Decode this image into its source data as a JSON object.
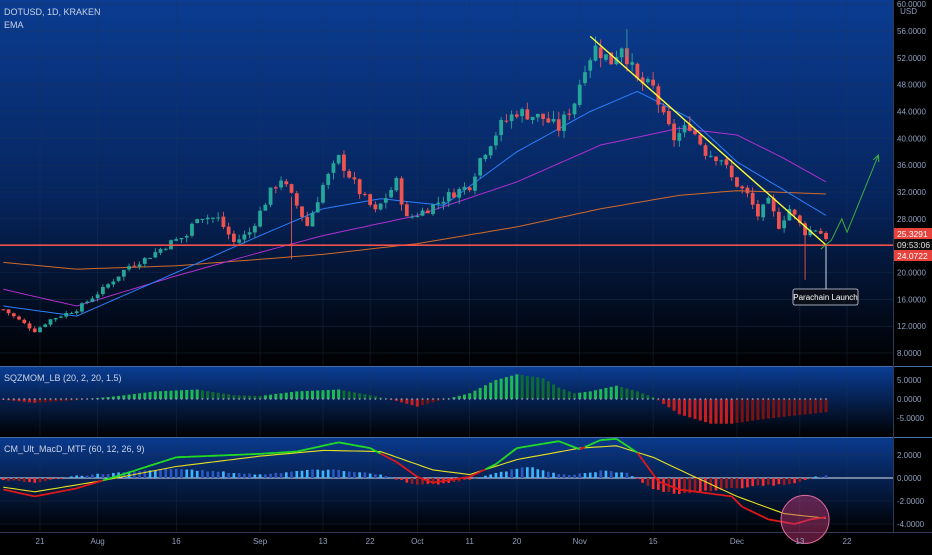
{
  "header": {
    "symbol": "DOTUSD, 1D, KRAKEN",
    "indicator": "EMA"
  },
  "currency": {
    "label": "USD"
  },
  "colors": {
    "up": "#26a69a",
    "down": "#ef5350",
    "bg_top": "#0a3a8c",
    "bg_bottom": "#000000",
    "support": "#f0524a",
    "trendline": "#ffff33",
    "ema_fast": "#2a7fff",
    "ema_mid": "#b030d0",
    "ema_slow": "#d06a2a",
    "projection": "#3fae3f",
    "grid": "#1f3552",
    "sqz_up": "#1db954",
    "sqz_down": "#c81e1e",
    "macd_line": "#22dd22",
    "signal_line": "#e8e020",
    "circle": "#c63a7a"
  },
  "price_axis": {
    "ticks": [
      "60.0000",
      "56.0000",
      "52.0000",
      "48.0000",
      "44.0000",
      "40.0000",
      "36.0000",
      "32.0000",
      "28.0000",
      "24.0000",
      "20.0000",
      "16.0000",
      "12.0000",
      "8.0000"
    ],
    "tick_values": [
      60,
      56,
      52,
      48,
      44,
      40,
      36,
      32,
      28,
      24,
      20,
      16,
      12,
      8
    ]
  },
  "price_labels": {
    "current": "25.3291",
    "countdown": "09:53:06",
    "support": "24.0722"
  },
  "annotation": {
    "text": "Parachain Launch"
  },
  "sqz_panel": {
    "title": "SQZMOM_LB (20, 2, 20, 1.5)",
    "ticks": [
      "5.0000",
      "0.0000",
      "-5.0000"
    ],
    "tick_values": [
      5,
      0,
      -5
    ]
  },
  "macd_panel": {
    "title": "CM_Ult_MacD_MTF (60, 12, 26, 9)",
    "ticks": [
      "2.0000",
      "0.0000",
      "-2.0000",
      "-4.0000"
    ],
    "tick_values": [
      2,
      0,
      -2,
      -4
    ]
  },
  "time_axis": {
    "labels": [
      "21",
      "Aug",
      "16",
      "Sep",
      "13",
      "22",
      "Oct",
      "11",
      "20",
      "Nov",
      "15",
      "Dec",
      "13",
      "22"
    ],
    "dates": [
      "2021-07-21",
      "2021-08-01",
      "2021-08-16",
      "2021-09-01",
      "2021-09-13",
      "2021-09-22",
      "2021-10-01",
      "2021-10-11",
      "2021-10-20",
      "2021-11-01",
      "2021-11-15",
      "2021-12-01",
      "2021-12-13",
      "2021-12-22"
    ]
  },
  "chart_data": {
    "type": "candlestick",
    "symbol": "DOTUSD",
    "interval": "1D",
    "exchange": "KRAKEN",
    "ylim": [
      7,
      61
    ],
    "support_level": 24.0722,
    "last_price": 25.3291,
    "trendline": {
      "from": {
        "date": "2021-11-03",
        "price": 55.2
      },
      "to": {
        "date": "2021-12-18",
        "price": 24.1
      }
    },
    "price_keypoints": [
      [
        "2021-07-14",
        14.5
      ],
      [
        "2021-07-20",
        11.3
      ],
      [
        "2021-07-23",
        13.0
      ],
      [
        "2021-07-28",
        14.5
      ],
      [
        "2021-08-02",
        17.5
      ],
      [
        "2021-08-07",
        21.0
      ],
      [
        "2021-08-10",
        22.0
      ],
      [
        "2021-08-15",
        24.5
      ],
      [
        "2021-08-18",
        25.5
      ],
      [
        "2021-08-20",
        28.5
      ],
      [
        "2021-08-24",
        28.0
      ],
      [
        "2021-08-27",
        24.5
      ],
      [
        "2021-08-30",
        26.0
      ],
      [
        "2021-09-03",
        32.0
      ],
      [
        "2021-09-05",
        34.0
      ],
      [
        "2021-09-08",
        30.0
      ],
      [
        "2021-09-10",
        27.0
      ],
      [
        "2021-09-13",
        33.0
      ],
      [
        "2021-09-16",
        37.0
      ],
      [
        "2021-09-20",
        32.0
      ],
      [
        "2021-09-23",
        29.0
      ],
      [
        "2021-09-27",
        33.5
      ],
      [
        "2021-09-29",
        28.0
      ],
      [
        "2021-10-03",
        29.5
      ],
      [
        "2021-10-07",
        31.5
      ],
      [
        "2021-10-11",
        33.0
      ],
      [
        "2021-10-13",
        37.0
      ],
      [
        "2021-10-17",
        42.0
      ],
      [
        "2021-10-20",
        44.0
      ],
      [
        "2021-10-25",
        43.0
      ],
      [
        "2021-10-28",
        41.5
      ],
      [
        "2021-10-31",
        45.5
      ],
      [
        "2021-11-02",
        51.0
      ],
      [
        "2021-11-04",
        53.5
      ],
      [
        "2021-11-07",
        51.5
      ],
      [
        "2021-11-09",
        54.0
      ],
      [
        "2021-11-12",
        48.5
      ],
      [
        "2021-11-15",
        47.5
      ],
      [
        "2021-11-17",
        43.0
      ],
      [
        "2021-11-19",
        40.0
      ],
      [
        "2021-11-22",
        42.0
      ],
      [
        "2021-11-25",
        38.0
      ],
      [
        "2021-11-28",
        37.0
      ],
      [
        "2021-11-30",
        34.0
      ],
      [
        "2021-12-03",
        31.5
      ],
      [
        "2021-12-05",
        28.5
      ],
      [
        "2021-12-07",
        30.5
      ],
      [
        "2021-12-09",
        27.0
      ],
      [
        "2021-12-11",
        29.5
      ],
      [
        "2021-12-14",
        26.0
      ],
      [
        "2021-12-16",
        26.5
      ],
      [
        "2021-12-18",
        25.3
      ]
    ],
    "ema_fast_keypoints": [
      [
        "2021-07-14",
        15.0
      ],
      [
        "2021-07-28",
        13.5
      ],
      [
        "2021-08-16",
        20.0
      ],
      [
        "2021-09-01",
        25.5
      ],
      [
        "2021-09-13",
        29.5
      ],
      [
        "2021-09-24",
        31.0
      ],
      [
        "2021-10-06",
        30.0
      ],
      [
        "2021-10-20",
        38.0
      ],
      [
        "2021-11-03",
        44.0
      ],
      [
        "2021-11-12",
        47.0
      ],
      [
        "2021-11-22",
        43.0
      ],
      [
        "2021-12-01",
        36.5
      ],
      [
        "2021-12-18",
        28.5
      ]
    ],
    "ema_mid_keypoints": [
      [
        "2021-07-14",
        17.5
      ],
      [
        "2021-07-28",
        15.0
      ],
      [
        "2021-08-16",
        19.5
      ],
      [
        "2021-09-01",
        23.0
      ],
      [
        "2021-09-13",
        25.5
      ],
      [
        "2021-10-01",
        28.5
      ],
      [
        "2021-10-20",
        33.5
      ],
      [
        "2021-11-05",
        39.0
      ],
      [
        "2021-11-20",
        41.5
      ],
      [
        "2021-12-01",
        40.5
      ],
      [
        "2021-12-10",
        37.0
      ],
      [
        "2021-12-18",
        33.5
      ]
    ],
    "ema_slow_keypoints": [
      [
        "2021-07-14",
        21.5
      ],
      [
        "2021-07-28",
        20.5
      ],
      [
        "2021-08-16",
        21.0
      ],
      [
        "2021-09-13",
        22.7
      ],
      [
        "2021-10-01",
        24.3
      ],
      [
        "2021-10-20",
        26.8
      ],
      [
        "2021-11-05",
        29.5
      ],
      [
        "2021-11-20",
        31.5
      ],
      [
        "2021-12-01",
        32.2
      ],
      [
        "2021-12-18",
        31.7
      ]
    ],
    "projection": [
      [
        "2021-12-17",
        23.5
      ],
      [
        "2021-12-19",
        24.8
      ],
      [
        "2021-12-21",
        28.0
      ],
      [
        "2021-12-22",
        26.0
      ],
      [
        "2021-12-28",
        37.5
      ]
    ],
    "squeeze_momentum_keypoints": [
      [
        "2021-07-14",
        -0.2
      ],
      [
        "2021-07-20",
        -1.0
      ],
      [
        "2021-07-28",
        -0.3
      ],
      [
        "2021-08-05",
        0.8
      ],
      [
        "2021-08-12",
        2.0
      ],
      [
        "2021-08-20",
        2.5
      ],
      [
        "2021-08-27",
        1.0
      ],
      [
        "2021-09-01",
        0.8
      ],
      [
        "2021-09-08",
        2.0
      ],
      [
        "2021-09-16",
        2.5
      ],
      [
        "2021-09-22",
        1.0
      ],
      [
        "2021-09-27",
        -0.5
      ],
      [
        "2021-10-01",
        -2.0
      ],
      [
        "2021-10-05",
        -0.5
      ],
      [
        "2021-10-11",
        1.5
      ],
      [
        "2021-10-16",
        5.0
      ],
      [
        "2021-10-20",
        6.5
      ],
      [
        "2021-10-25",
        5.5
      ],
      [
        "2021-10-28",
        3.0
      ],
      [
        "2021-10-31",
        1.5
      ],
      [
        "2021-11-03",
        2.0
      ],
      [
        "2021-11-08",
        3.5
      ],
      [
        "2021-11-12",
        2.0
      ],
      [
        "2021-11-15",
        0.5
      ],
      [
        "2021-11-20",
        -4.0
      ],
      [
        "2021-11-26",
        -6.5
      ],
      [
        "2021-11-30",
        -6.5
      ],
      [
        "2021-12-05",
        -5.5
      ],
      [
        "2021-12-11",
        -4.5
      ],
      [
        "2021-12-18",
        -3.5
      ]
    ],
    "macd_line_keypoints": [
      [
        "2021-07-14",
        -1.0
      ],
      [
        "2021-07-20",
        -1.6
      ],
      [
        "2021-07-28",
        -0.9
      ],
      [
        "2021-08-05",
        0.2
      ],
      [
        "2021-08-16",
        1.8
      ],
      [
        "2021-09-01",
        2.1
      ],
      [
        "2021-09-08",
        2.3
      ],
      [
        "2021-09-16",
        3.1
      ],
      [
        "2021-09-22",
        2.6
      ],
      [
        "2021-09-27",
        1.4
      ],
      [
        "2021-10-01",
        0.1
      ],
      [
        "2021-10-04",
        -0.4
      ],
      [
        "2021-10-11",
        0.1
      ],
      [
        "2021-10-16",
        1.2
      ],
      [
        "2021-10-20",
        2.6
      ],
      [
        "2021-10-28",
        3.2
      ],
      [
        "2021-11-01",
        2.5
      ],
      [
        "2021-11-05",
        3.3
      ],
      [
        "2021-11-08",
        3.4
      ],
      [
        "2021-11-12",
        2.2
      ],
      [
        "2021-11-16",
        -0.3
      ],
      [
        "2021-11-20",
        -1.0
      ],
      [
        "2021-11-25",
        -1.3
      ],
      [
        "2021-11-30",
        -1.6
      ],
      [
        "2021-12-02",
        -2.5
      ],
      [
        "2021-12-07",
        -3.6
      ],
      [
        "2021-12-12",
        -4.0
      ],
      [
        "2021-12-15",
        -3.6
      ],
      [
        "2021-12-18",
        -3.4
      ]
    ],
    "signal_line_keypoints": [
      [
        "2021-07-14",
        -0.8
      ],
      [
        "2021-07-20",
        -1.2
      ],
      [
        "2021-08-01",
        -0.3
      ],
      [
        "2021-08-16",
        1.0
      ],
      [
        "2021-09-01",
        1.9
      ],
      [
        "2021-09-13",
        2.4
      ],
      [
        "2021-09-24",
        2.3
      ],
      [
        "2021-10-04",
        0.7
      ],
      [
        "2021-10-11",
        0.3
      ],
      [
        "2021-10-20",
        1.6
      ],
      [
        "2021-11-01",
        2.6
      ],
      [
        "2021-11-08",
        2.8
      ],
      [
        "2021-11-15",
        1.8
      ],
      [
        "2021-11-22",
        0.3
      ],
      [
        "2021-12-01",
        -1.6
      ],
      [
        "2021-12-10",
        -3.1
      ],
      [
        "2021-12-18",
        -3.5
      ]
    ],
    "macd_hist_keypoints": [
      [
        "2021-07-14",
        -0.2
      ],
      [
        "2021-07-20",
        -0.4
      ],
      [
        "2021-07-28",
        0.2
      ],
      [
        "2021-08-16",
        0.8
      ],
      [
        "2021-09-01",
        0.3
      ],
      [
        "2021-09-10",
        0.7
      ],
      [
        "2021-09-16",
        0.7
      ],
      [
        "2021-09-24",
        0.3
      ],
      [
        "2021-10-01",
        -0.6
      ],
      [
        "2021-10-06",
        -0.5
      ],
      [
        "2021-10-11",
        -0.1
      ],
      [
        "2021-10-16",
        0.4
      ],
      [
        "2021-10-22",
        1.0
      ],
      [
        "2021-10-30",
        0.2
      ],
      [
        "2021-11-05",
        0.6
      ],
      [
        "2021-11-10",
        0.5
      ],
      [
        "2021-11-15",
        -1.0
      ],
      [
        "2021-11-20",
        -1.4
      ],
      [
        "2021-11-28",
        -1.0
      ],
      [
        "2021-12-05",
        -0.7
      ],
      [
        "2021-12-12",
        -0.5
      ],
      [
        "2021-12-16",
        0.1
      ],
      [
        "2021-12-18",
        0.2
      ]
    ]
  }
}
